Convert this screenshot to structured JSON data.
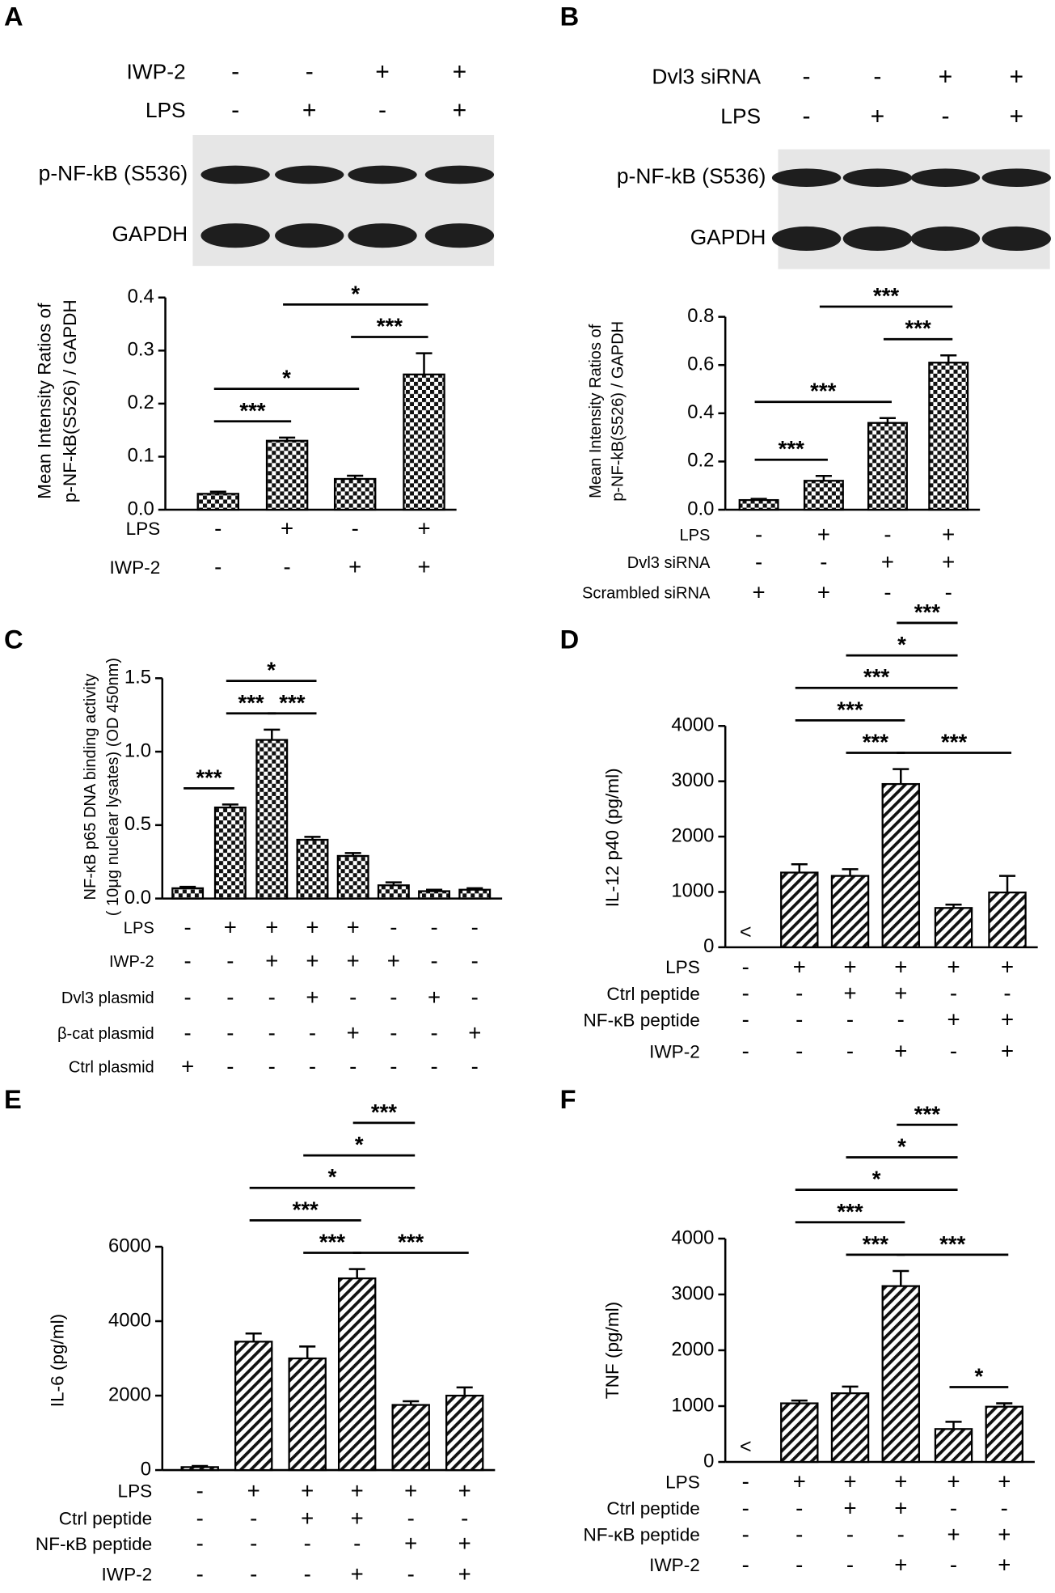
{
  "chart_data": [
    {
      "type": "bar",
      "panel": "A",
      "pattern": "checker",
      "blot": {
        "rows": [
          {
            "label": "IWP-2",
            "signs": [
              "-",
              "-",
              "+",
              "+"
            ]
          },
          {
            "label": "LPS",
            "signs": [
              "-",
              "+",
              "-",
              "+"
            ]
          }
        ],
        "bands": [
          "p-NF-kB (S536)",
          "GAPDH"
        ]
      },
      "ylabel": [
        "Mean Intensity Ratios of",
        "p-NF-kB(S526) / GAPDH"
      ],
      "values": [
        0.03,
        0.13,
        0.058,
        0.255
      ],
      "errors": [
        0.004,
        0.006,
        0.006,
        0.04
      ],
      "ylim": [
        0,
        0.4
      ],
      "yticks": [
        {
          "value": 0,
          "label": "0.0"
        },
        0.1,
        0.2,
        0.3,
        0.4
      ],
      "annotations": [
        {
          "from": 0,
          "to": 1,
          "label": "***"
        },
        {
          "from": 2,
          "to": 3,
          "label": "***"
        },
        {
          "from": 0,
          "to": 2,
          "label": "*"
        },
        {
          "from": 1,
          "to": 3,
          "label": "*"
        }
      ],
      "conditions": [
        {
          "label": "LPS",
          "signs": [
            "-",
            "+",
            "-",
            "+"
          ]
        },
        {
          "label": "IWP-2",
          "signs": [
            "-",
            "-",
            "+",
            "+"
          ]
        }
      ]
    },
    {
      "type": "bar",
      "panel": "B",
      "pattern": "checker",
      "blot": {
        "rows": [
          {
            "label": "Dvl3 siRNA",
            "signs": [
              "-",
              "-",
              "+",
              "+"
            ]
          },
          {
            "label": "LPS",
            "signs": [
              "-",
              "+",
              "-",
              "+"
            ]
          }
        ],
        "bands": [
          "p-NF-kB (S536)",
          "GAPDH"
        ]
      },
      "ylabel": [
        "Mean Intensity Ratios of",
        "p-NF-kB(S526) / GAPDH"
      ],
      "values": [
        0.04,
        0.12,
        0.36,
        0.61
      ],
      "errors": [
        0.005,
        0.02,
        0.02,
        0.03
      ],
      "ylim": [
        0,
        0.8
      ],
      "yticks": [
        {
          "value": 0,
          "label": "0.0"
        },
        0.2,
        0.4,
        0.6,
        0.8
      ],
      "annotations": [
        {
          "from": 0,
          "to": 1,
          "label": "***"
        },
        {
          "from": 2,
          "to": 3,
          "label": "***"
        },
        {
          "from": 0,
          "to": 2,
          "label": "***"
        },
        {
          "from": 1,
          "to": 3,
          "label": "***"
        }
      ],
      "conditions": [
        {
          "label": "LPS",
          "signs": [
            "-",
            "+",
            "-",
            "+"
          ]
        },
        {
          "label": "Dvl3 siRNA",
          "signs": [
            "-",
            "-",
            "+",
            "+"
          ]
        },
        {
          "label": "Scrambled siRNA",
          "signs": [
            "+",
            "+",
            "-",
            "-"
          ]
        }
      ]
    },
    {
      "type": "bar",
      "panel": "C",
      "pattern": "checker",
      "ylabel": [
        "NF-κB p65 DNA binding activity",
        "( 10μg nuclear lysates) (OD 450nm)"
      ],
      "values": [
        0.07,
        0.62,
        1.08,
        0.4,
        0.29,
        0.09,
        0.05,
        0.06
      ],
      "errors": [
        0.01,
        0.02,
        0.07,
        0.02,
        0.02,
        0.02,
        0.01,
        0.01
      ],
      "ylim": [
        0,
        1.5
      ],
      "yticks": [
        {
          "value": 0,
          "label": "0.0"
        },
        0.5,
        {
          "value": 1,
          "label": "1.0"
        },
        1.5
      ],
      "annotations": [
        {
          "from": 0,
          "to": 1,
          "label": "***"
        },
        {
          "from": 1,
          "to": 2,
          "label": "***"
        },
        {
          "from": 2,
          "to": 3,
          "label": "***"
        },
        {
          "from": 1,
          "to": 3,
          "label": "*"
        }
      ],
      "conditions": [
        {
          "label": "LPS",
          "signs": [
            "-",
            "+",
            "+",
            "+",
            "+",
            "-",
            "-",
            "-"
          ]
        },
        {
          "label": "IWP-2",
          "signs": [
            "-",
            "-",
            "+",
            "+",
            "+",
            "+",
            "-",
            "-"
          ]
        },
        {
          "label": "Dvl3 plasmid",
          "signs": [
            "-",
            "-",
            "-",
            "+",
            "-",
            "-",
            "+",
            "-"
          ]
        },
        {
          "label": "β-cat plasmid",
          "signs": [
            "-",
            "-",
            "-",
            "-",
            "+",
            "-",
            "-",
            "+"
          ]
        },
        {
          "label": "Ctrl plasmid",
          "signs": [
            "+",
            "-",
            "-",
            "-",
            "-",
            "-",
            "-",
            "-"
          ]
        }
      ]
    },
    {
      "type": "bar",
      "panel": "D",
      "pattern": "hatch",
      "ylabel": [
        "IL-12 p40 (pg/ml)"
      ],
      "values": [
        null,
        1350,
        1290,
        2950,
        710,
        990
      ],
      "value_labels": [
        "<",
        null,
        null,
        null,
        null,
        null
      ],
      "errors": [
        null,
        150,
        120,
        270,
        60,
        300
      ],
      "ylim": [
        0,
        4000
      ],
      "yticks": [
        0,
        1000,
        2000,
        3000,
        4000
      ],
      "annotations": [
        {
          "from": 2,
          "to": 3,
          "label": "***"
        },
        {
          "from": 3,
          "to": 5,
          "label": "***"
        },
        {
          "from": 1,
          "to": 3,
          "label": "***"
        },
        {
          "from": 1,
          "to": 4,
          "label": "***"
        },
        {
          "from": 2,
          "to": 4,
          "label": "*"
        },
        {
          "from": 3,
          "to": 4,
          "label": "***"
        }
      ],
      "conditions": [
        {
          "label": "LPS",
          "signs": [
            "-",
            "+",
            "+",
            "+",
            "+",
            "+"
          ]
        },
        {
          "label": "Ctrl peptide",
          "signs": [
            "-",
            "-",
            "+",
            "+",
            "-",
            "-"
          ]
        },
        {
          "label": "NF-κB peptide",
          "signs": [
            "-",
            "-",
            "-",
            "-",
            "+",
            "+"
          ]
        },
        {
          "label": "IWP-2",
          "signs": [
            "-",
            "-",
            "-",
            "+",
            "-",
            "+"
          ]
        }
      ]
    },
    {
      "type": "bar",
      "panel": "E",
      "pattern": "hatch",
      "ylabel": [
        "IL-6 (pg/ml)"
      ],
      "values": [
        80,
        3450,
        3000,
        5150,
        1750,
        2000
      ],
      "errors": [
        30,
        220,
        320,
        250,
        100,
        220
      ],
      "ylim": [
        0,
        6000
      ],
      "yticks": [
        0,
        2000,
        4000,
        6000
      ],
      "annotations": [
        {
          "from": 2,
          "to": 3,
          "label": "***"
        },
        {
          "from": 3,
          "to": 5,
          "label": "***"
        },
        {
          "from": 1,
          "to": 3,
          "label": "***"
        },
        {
          "from": 1,
          "to": 4,
          "label": "*"
        },
        {
          "from": 2,
          "to": 4,
          "label": "*"
        },
        {
          "from": 3,
          "to": 4,
          "label": "***"
        }
      ],
      "conditions": [
        {
          "label": "LPS",
          "signs": [
            "-",
            "+",
            "+",
            "+",
            "+",
            "+"
          ]
        },
        {
          "label": "Ctrl peptide",
          "signs": [
            "-",
            "-",
            "+",
            "+",
            "-",
            "-"
          ]
        },
        {
          "label": "NF-κB peptide",
          "signs": [
            "-",
            "-",
            "-",
            "-",
            "+",
            "+"
          ]
        },
        {
          "label": "IWP-2",
          "signs": [
            "-",
            "-",
            "-",
            "+",
            "-",
            "+"
          ]
        }
      ]
    },
    {
      "type": "bar",
      "panel": "F",
      "pattern": "hatch",
      "ylabel": [
        "TNF (pg/ml)"
      ],
      "values": [
        null,
        1050,
        1230,
        3150,
        590,
        990
      ],
      "value_labels": [
        "<",
        null,
        null,
        null,
        null,
        null
      ],
      "errors": [
        null,
        50,
        120,
        270,
        130,
        60
      ],
      "ylim": [
        0,
        4000
      ],
      "yticks": [
        0,
        1000,
        2000,
        3000,
        4000
      ],
      "annotations": [
        {
          "from": 4,
          "to": 5,
          "label": "*"
        },
        {
          "from": 2,
          "to": 3,
          "label": "***"
        },
        {
          "from": 3,
          "to": 5,
          "label": "***"
        },
        {
          "from": 1,
          "to": 3,
          "label": "***"
        },
        {
          "from": 1,
          "to": 4,
          "label": "*"
        },
        {
          "from": 2,
          "to": 4,
          "label": "*"
        },
        {
          "from": 3,
          "to": 4,
          "label": "***"
        }
      ],
      "conditions": [
        {
          "label": "LPS",
          "signs": [
            "-",
            "+",
            "+",
            "+",
            "+",
            "+"
          ]
        },
        {
          "label": "Ctrl peptide",
          "signs": [
            "-",
            "-",
            "+",
            "+",
            "-",
            "-"
          ]
        },
        {
          "label": "NF-κB peptide",
          "signs": [
            "-",
            "-",
            "-",
            "-",
            "+",
            "+"
          ]
        },
        {
          "label": "IWP-2",
          "signs": [
            "-",
            "-",
            "-",
            "+",
            "-",
            "+"
          ]
        }
      ]
    }
  ]
}
